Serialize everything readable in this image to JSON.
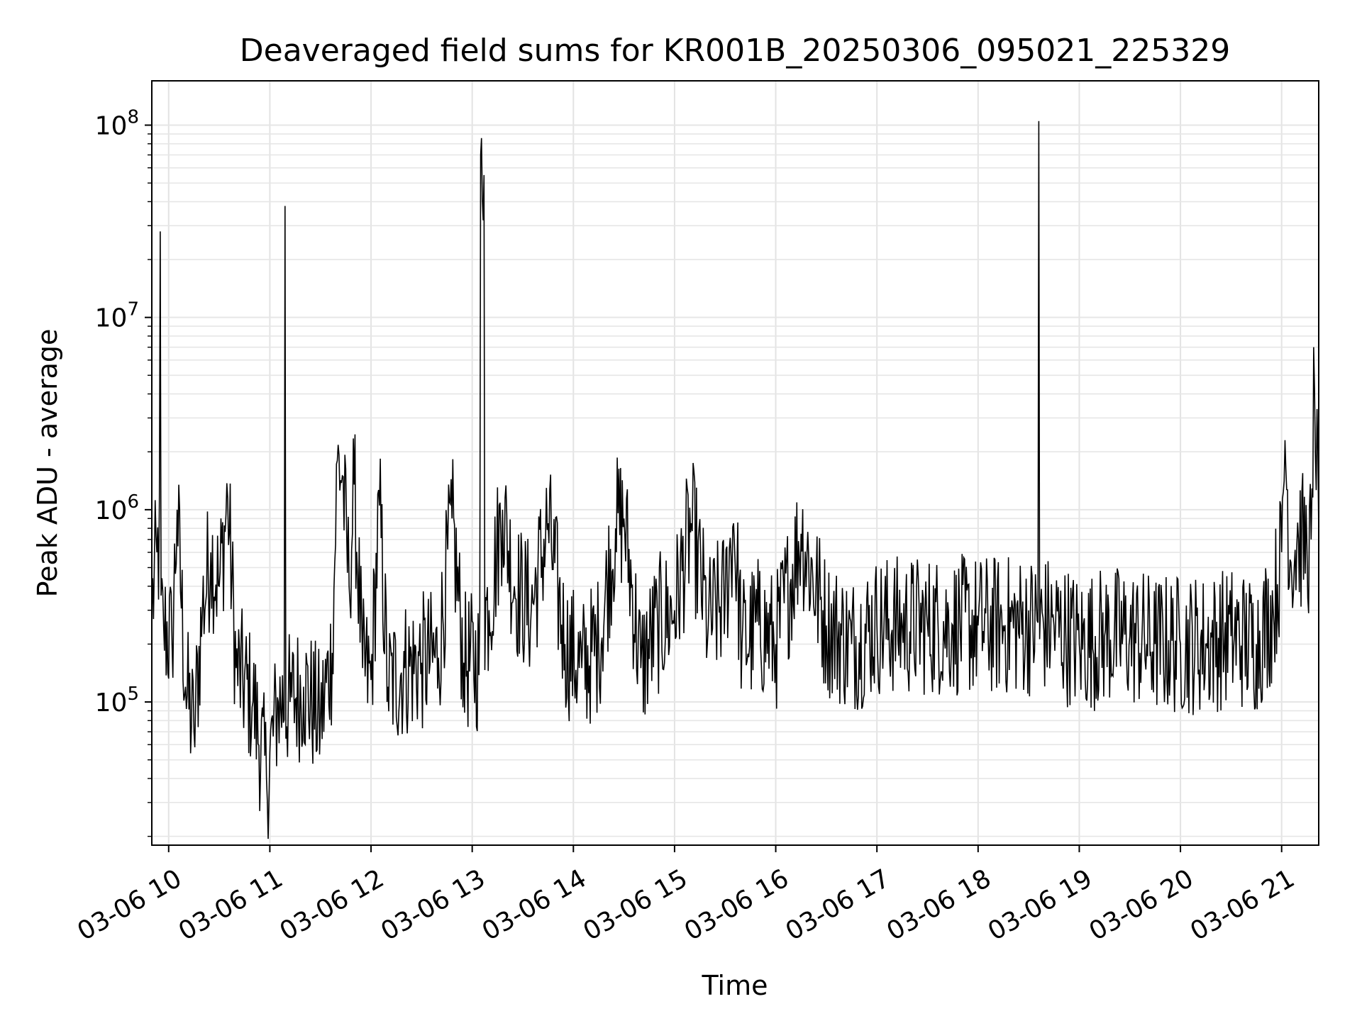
{
  "chart_data": {
    "type": "line",
    "title": "Deaveraged field sums for KR001B_20250306_095021_225329",
    "xlabel": "Time",
    "ylabel": "Peak ADU - average",
    "yscale": "log",
    "xlim": [
      "2025-03-06 09:50",
      "2025-03-06 21:22"
    ],
    "ylim": [
      18000,
      170000000
    ],
    "grid": true,
    "x_ticks": [
      {
        "x": "2025-03-06 10:00",
        "label": "03-06 10"
      },
      {
        "x": "2025-03-06 11:00",
        "label": "03-06 11"
      },
      {
        "x": "2025-03-06 12:00",
        "label": "03-06 12"
      },
      {
        "x": "2025-03-06 13:00",
        "label": "03-06 13"
      },
      {
        "x": "2025-03-06 14:00",
        "label": "03-06 14"
      },
      {
        "x": "2025-03-06 15:00",
        "label": "03-06 15"
      },
      {
        "x": "2025-03-06 16:00",
        "label": "03-06 16"
      },
      {
        "x": "2025-03-06 17:00",
        "label": "03-06 17"
      },
      {
        "x": "2025-03-06 18:00",
        "label": "03-06 18"
      },
      {
        "x": "2025-03-06 19:00",
        "label": "03-06 19"
      },
      {
        "x": "2025-03-06 20:00",
        "label": "03-06 20"
      },
      {
        "x": "2025-03-06 21:00",
        "label": "03-06 21"
      }
    ],
    "y_ticks": [
      {
        "value": 100000,
        "base": "10",
        "exp": "5"
      },
      {
        "value": 1000000,
        "base": "10",
        "exp": "6"
      },
      {
        "value": 10000000,
        "base": "10",
        "exp": "7"
      },
      {
        "value": 100000000,
        "base": "10",
        "exp": "8"
      }
    ],
    "series": [
      {
        "color": "#000000",
        "points": [
          [
            "2025-03-06 09:50",
            300000
          ],
          [
            "2025-03-06 09:53",
            600000
          ],
          [
            "2025-03-06 09:55",
            28000000
          ],
          [
            "2025-03-06 09:57",
            250000
          ],
          [
            "2025-03-06 10:02",
            200000
          ],
          [
            "2025-03-06 10:05",
            1000000
          ],
          [
            "2025-03-06 10:10",
            120000
          ],
          [
            "2025-03-06 10:15",
            70000
          ],
          [
            "2025-03-06 10:20",
            300000
          ],
          [
            "2025-03-06 10:25",
            600000
          ],
          [
            "2025-03-06 10:30",
            400000
          ],
          [
            "2025-03-06 10:35",
            1150000
          ],
          [
            "2025-03-06 10:40",
            150000
          ],
          [
            "2025-03-06 10:50",
            100000
          ],
          [
            "2025-03-06 10:58",
            40000
          ],
          [
            "2025-03-06 11:05",
            100000
          ],
          [
            "2025-03-06 11:09",
            38000000
          ],
          [
            "2025-03-06 11:12",
            100000
          ],
          [
            "2025-03-06 11:20",
            120000
          ],
          [
            "2025-03-06 11:30",
            80000
          ],
          [
            "2025-03-06 11:37",
            180000
          ],
          [
            "2025-03-06 11:40",
            1800000
          ],
          [
            "2025-03-06 11:43",
            1500000
          ],
          [
            "2025-03-06 11:47",
            400000
          ],
          [
            "2025-03-06 11:50",
            1350000
          ],
          [
            "2025-03-06 11:55",
            150000
          ],
          [
            "2025-03-06 12:00",
            130000
          ],
          [
            "2025-03-06 12:05",
            1050000
          ],
          [
            "2025-03-06 12:10",
            120000
          ],
          [
            "2025-03-06 12:20",
            150000
          ],
          [
            "2025-03-06 12:30",
            160000
          ],
          [
            "2025-03-06 12:40",
            170000
          ],
          [
            "2025-03-06 12:48",
            900000
          ],
          [
            "2025-03-06 12:55",
            160000
          ],
          [
            "2025-03-06 13:05",
            70000000
          ],
          [
            "2025-03-06 13:07",
            55000000
          ],
          [
            "2025-03-06 13:10",
            300000
          ],
          [
            "2025-03-06 13:18",
            1000000
          ],
          [
            "2025-03-06 13:25",
            400000
          ],
          [
            "2025-03-06 13:35",
            300000
          ],
          [
            "2025-03-06 13:45",
            850000
          ],
          [
            "2025-03-06 13:55",
            200000
          ],
          [
            "2025-03-06 14:05",
            150000
          ],
          [
            "2025-03-06 14:15",
            200000
          ],
          [
            "2025-03-06 14:25",
            800000
          ],
          [
            "2025-03-06 14:30",
            900000
          ],
          [
            "2025-03-06 14:40",
            150000
          ],
          [
            "2025-03-06 14:50",
            250000
          ],
          [
            "2025-03-06 15:00",
            300000
          ],
          [
            "2025-03-06 15:10",
            850000
          ],
          [
            "2025-03-06 15:20",
            250000
          ],
          [
            "2025-03-06 15:30",
            350000
          ],
          [
            "2025-03-06 15:35",
            850000
          ],
          [
            "2025-03-06 15:40",
            200000
          ],
          [
            "2025-03-06 15:50",
            250000
          ],
          [
            "2025-03-06 16:00",
            200000
          ],
          [
            "2025-03-06 16:15",
            750000
          ],
          [
            "2025-03-06 16:30",
            250000
          ],
          [
            "2025-03-06 16:45",
            200000
          ],
          [
            "2025-03-06 17:00",
            250000
          ],
          [
            "2025-03-06 17:15",
            250000
          ],
          [
            "2025-03-06 17:30",
            250000
          ],
          [
            "2025-03-06 17:45",
            250000
          ],
          [
            "2025-03-06 18:00",
            250000
          ],
          [
            "2025-03-06 18:15",
            250000
          ],
          [
            "2025-03-06 18:36",
            105000000
          ],
          [
            "2025-03-06 18:45",
            250000
          ],
          [
            "2025-03-06 19:00",
            200000
          ],
          [
            "2025-03-06 19:15",
            220000
          ],
          [
            "2025-03-06 19:30",
            220000
          ],
          [
            "2025-03-06 19:45",
            200000
          ],
          [
            "2025-03-06 20:00",
            200000
          ],
          [
            "2025-03-06 20:15",
            200000
          ],
          [
            "2025-03-06 20:30",
            220000
          ],
          [
            "2025-03-06 20:45",
            200000
          ],
          [
            "2025-03-06 20:55",
            300000
          ],
          [
            "2025-03-06 21:00",
            600000
          ],
          [
            "2025-03-06 21:02",
            2300000
          ],
          [
            "2025-03-06 21:05",
            550000
          ],
          [
            "2025-03-06 21:10",
            700000
          ],
          [
            "2025-03-06 21:15",
            650000
          ],
          [
            "2025-03-06 21:19",
            7000000
          ],
          [
            "2025-03-06 21:22",
            750000
          ]
        ]
      }
    ]
  }
}
